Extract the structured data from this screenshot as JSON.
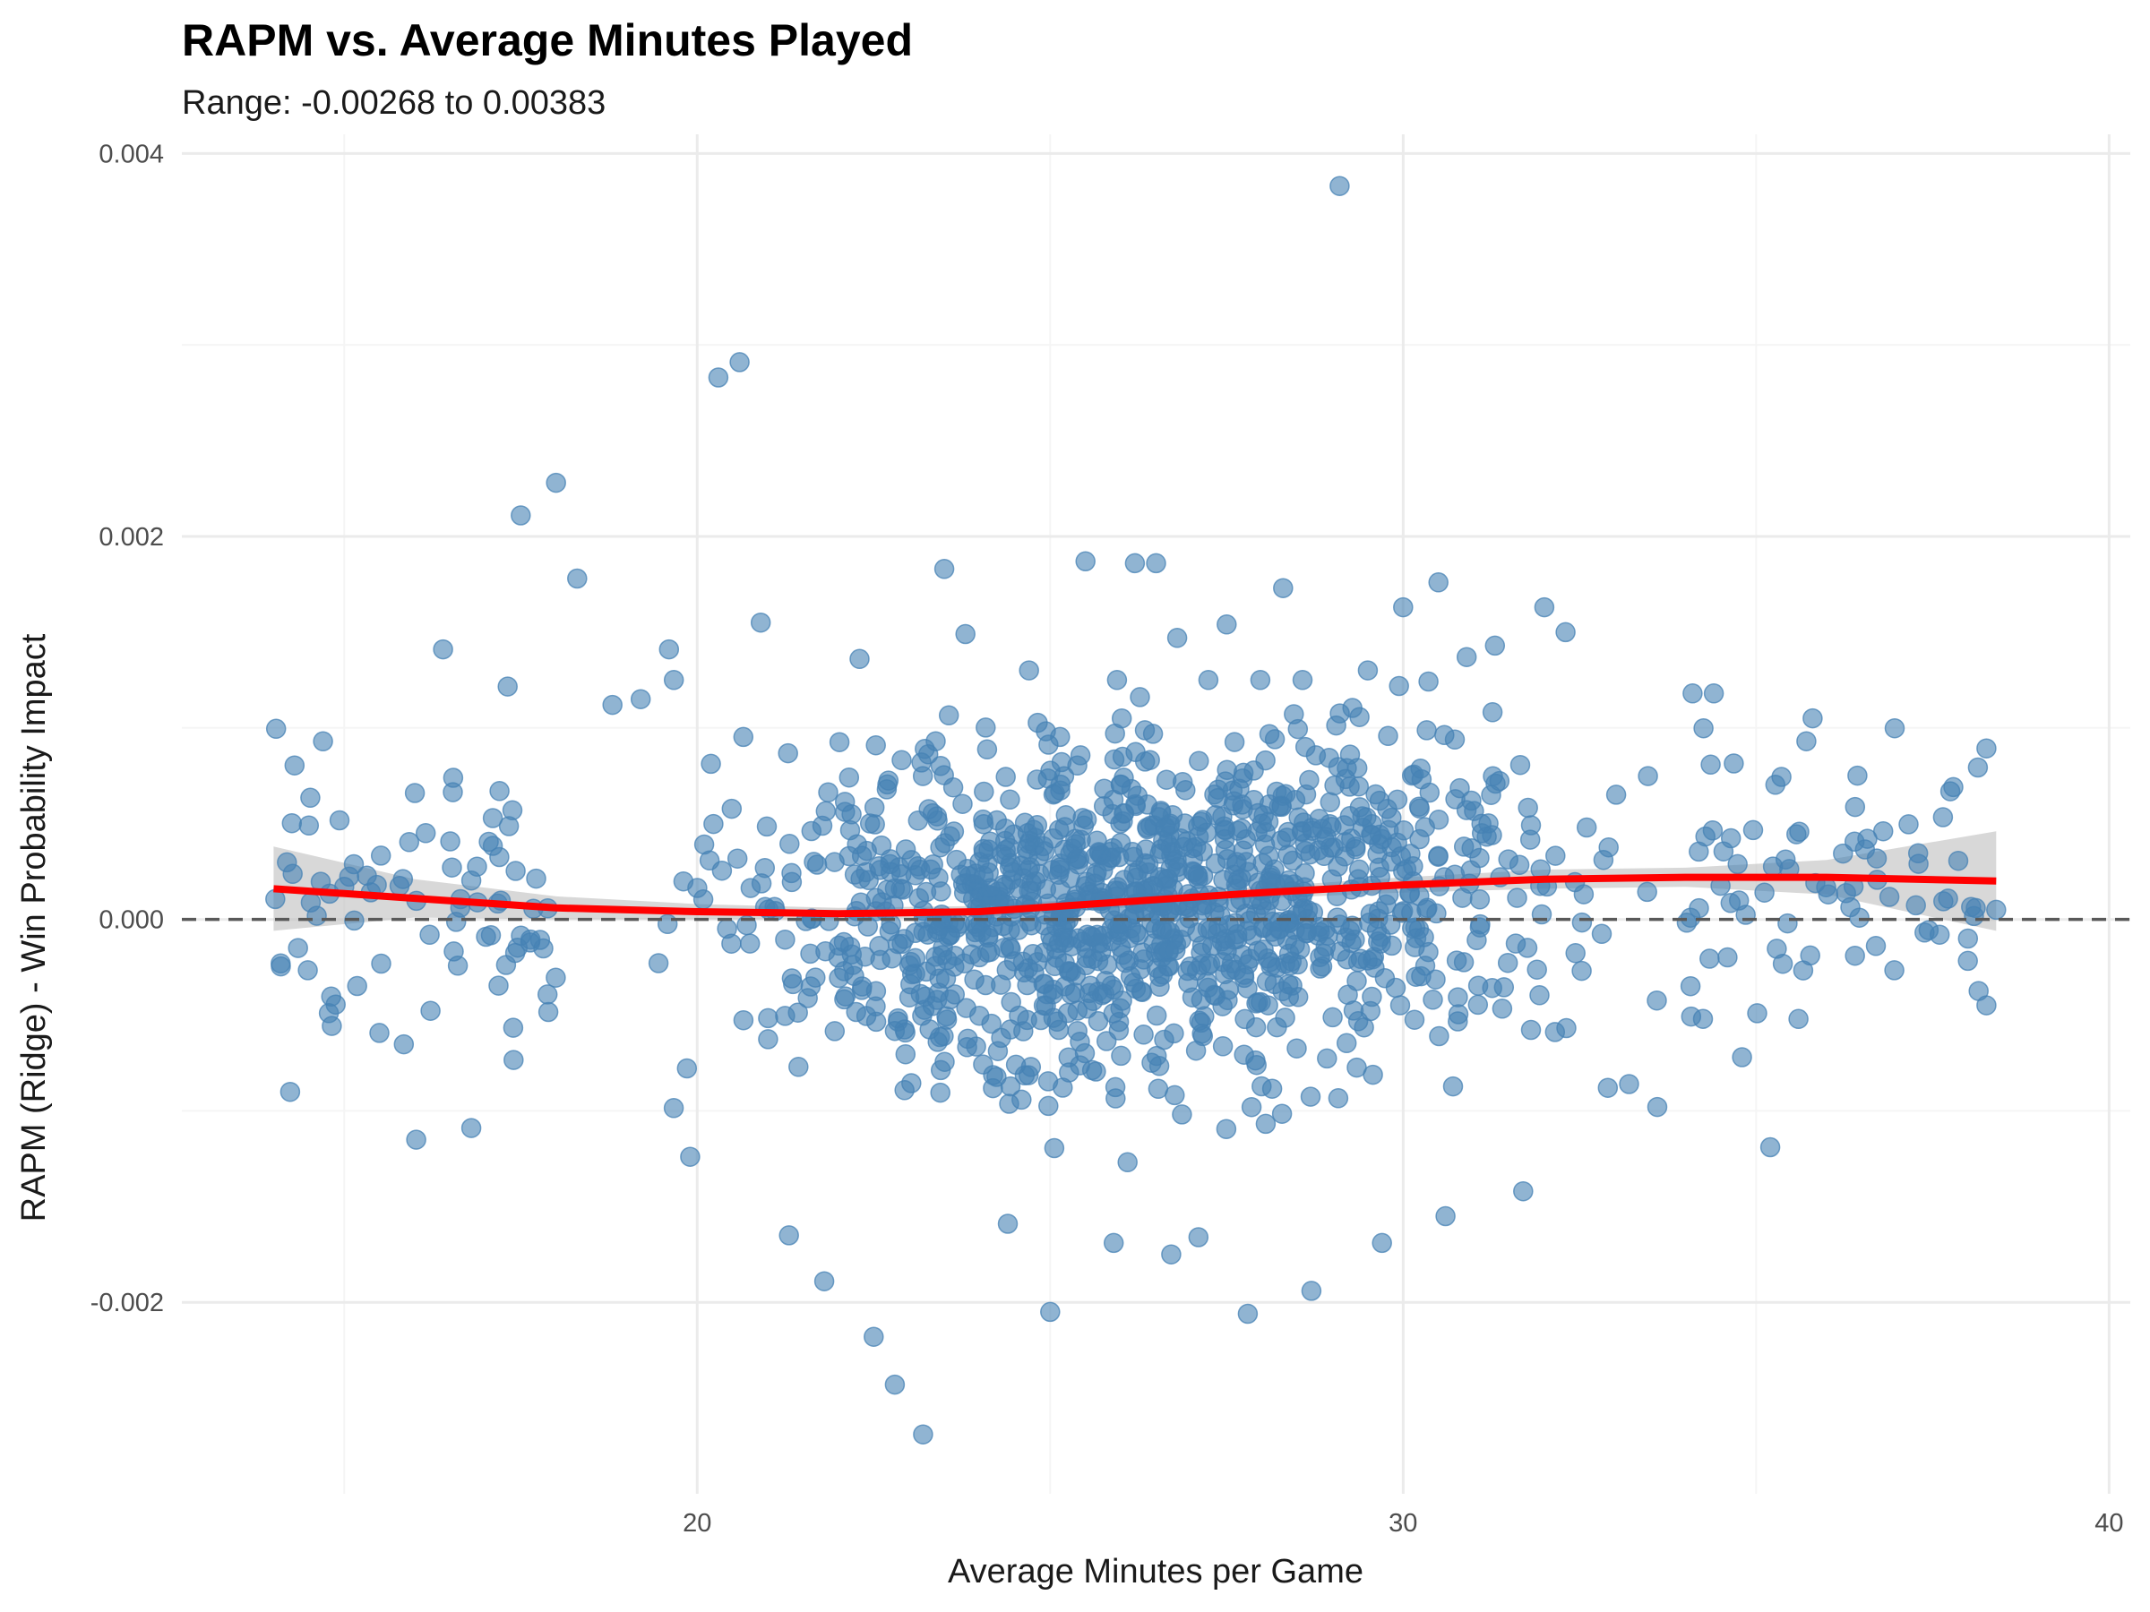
{
  "colors": {
    "points": "#4682b4",
    "smooth_line": "#ff0000",
    "confidence_band": "#bebebe",
    "reference_line": "#595959",
    "grid_major": "#ebebeb",
    "grid_minor": "#f5f5f5"
  },
  "chart_data": {
    "type": "scatter",
    "title": "RAPM vs. Average Minutes Played",
    "subtitle": "Range: -0.00268 to 0.00383",
    "xlabel": "Average Minutes per Game",
    "ylabel": "RAPM (Ridge) - Win Probability Impact",
    "xlim": [
      12.7,
      40.3
    ],
    "ylim": [
      -0.003,
      0.0041
    ],
    "x_ticks": [
      20,
      30,
      40
    ],
    "x_tick_labels": [
      "20",
      "30",
      "40"
    ],
    "y_ticks": [
      -0.002,
      0.0,
      0.002,
      0.004
    ],
    "y_tick_labels": [
      "-0.002",
      "0.000",
      "0.002",
      "0.004"
    ],
    "grid": true,
    "legend": "none",
    "reference_line": {
      "y": 0.0,
      "style": "dashed"
    },
    "smooth": {
      "method": "loess",
      "x": [
        14.0,
        16.0,
        18.0,
        20.0,
        22.0,
        24.0,
        26.0,
        28.0,
        30.0,
        32.0,
        34.0,
        36.0,
        38.4
      ],
      "y": [
        0.00016,
        0.00011,
        6e-05,
        4e-05,
        3e-05,
        4e-05,
        9e-05,
        0.00014,
        0.00018,
        0.00021,
        0.00022,
        0.00022,
        0.0002
      ],
      "lower": [
        -6e-05,
        1e-05,
        0.0,
        0.0,
        0.0,
        1e-05,
        6e-05,
        0.00011,
        0.00014,
        0.00016,
        0.00017,
        0.00013,
        -6e-05
      ],
      "upper": [
        0.00038,
        0.00021,
        0.00012,
        8e-05,
        6e-05,
        7e-05,
        0.00012,
        0.00017,
        0.00022,
        0.00026,
        0.00027,
        0.00031,
        0.00046
      ]
    },
    "series": [
      {
        "x": [
          14.1,
          14.5,
          14.7,
          15.0,
          16.0,
          16.4,
          16.8,
          17.2,
          17.5,
          18.0,
          18.3,
          18.8,
          19.2,
          19.6,
          19.9,
          20.3,
          20.6,
          20.9,
          21.3,
          21.8,
          22.3,
          22.5,
          22.8,
          23.2,
          23.5,
          23.8,
          24.4,
          24.7,
          25.0,
          25.5,
          25.9,
          26.2,
          26.5,
          26.8,
          27.1,
          27.5,
          27.8,
          28.3,
          28.7,
          29.1,
          29.5,
          29.7,
          30.0,
          30.5,
          30.6,
          30.9,
          31.3,
          31.7,
          32.0,
          32.3,
          32.6,
          32.9,
          33.2,
          33.6,
          34.1,
          34.4,
          34.8,
          35.2,
          35.6,
          35.8,
          36.4,
          36.8,
          37.3,
          37.6,
          38.0,
          38.4,
          24.0,
          26.0,
          28.0,
          22.0,
          30.0
        ],
        "y": [
          -0.00023,
          0.00049,
          0.00093,
          0.00017,
          0.00066,
          0.00141,
          -0.00109,
          0.00067,
          0.00211,
          0.00228,
          0.00178,
          0.00112,
          0.00115,
          0.00141,
          -0.00124,
          0.00283,
          0.00291,
          0.00155,
          -0.00165,
          -0.00189,
          0.00136,
          -0.00218,
          -0.00243,
          -0.00269,
          0.00183,
          0.00149,
          -0.00159,
          0.0013,
          -0.00205,
          0.00187,
          -0.00169,
          0.00186,
          0.00186,
          0.00147,
          -0.00166,
          0.00154,
          -0.00206,
          0.00173,
          -0.00194,
          0.00383,
          0.0013,
          -0.00169,
          0.00163,
          0.00176,
          -0.00155,
          0.00137,
          0.00143,
          -0.00142,
          0.00163,
          0.0015,
          0.00048,
          -0.00088,
          -0.00086,
          -0.00098,
          0.00118,
          0.00118,
          -0.00072,
          -0.00119,
          -0.00052,
          0.00105,
          -0.00019,
          0.00046,
          0.00029,
          -8e-05,
          -0.0001,
          5e-05,
          0.0003,
          0.0004,
          0.0005,
          -0.0002,
          0.00025
        ]
      }
    ]
  }
}
